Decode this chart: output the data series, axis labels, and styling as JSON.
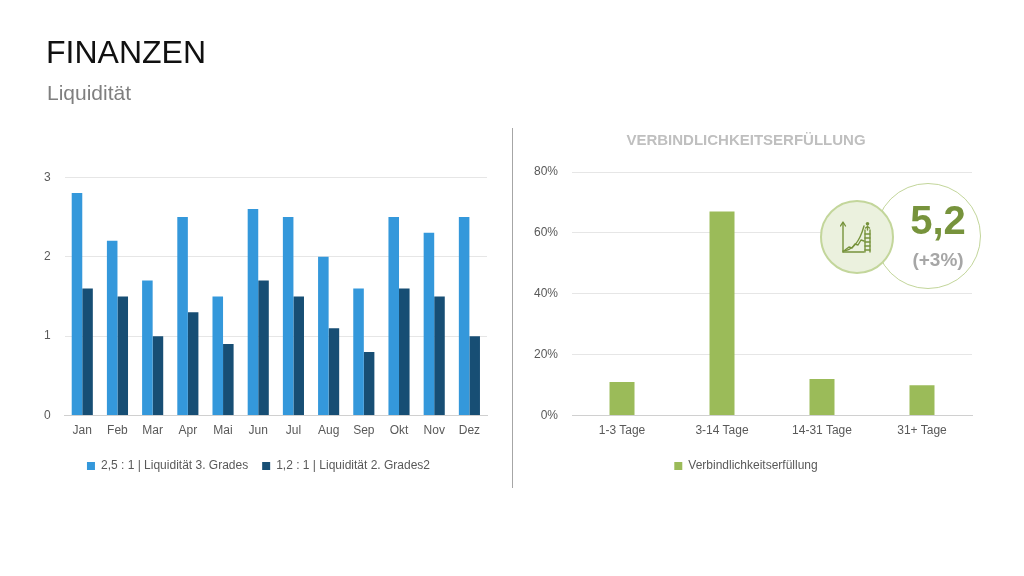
{
  "chart_data": [
    {
      "type": "bar",
      "title": "FINANZEN",
      "subtitle": "Liquidität",
      "categories": [
        "Jan",
        "Feb",
        "Mar",
        "Apr",
        "Mai",
        "Jun",
        "Jul",
        "Aug",
        "Sep",
        "Okt",
        "Nov",
        "Dez"
      ],
      "series": [
        {
          "name": "2,5 : 1 | Liquidität 3. Grades",
          "color": "#3498db",
          "values": [
            2.8,
            2.2,
            1.7,
            2.5,
            1.5,
            2.6,
            2.5,
            2.0,
            1.6,
            2.5,
            2.3,
            2.5
          ]
        },
        {
          "name": "1,2 : 1 | Liquidität 2. Grades2",
          "color": "#174e74",
          "values": [
            1.6,
            1.5,
            1.0,
            1.3,
            0.9,
            1.7,
            1.5,
            1.1,
            0.8,
            1.6,
            1.5,
            1.0
          ]
        }
      ],
      "ylim": [
        0,
        3
      ],
      "yticks": [
        0,
        1,
        2,
        3
      ],
      "grid": "y",
      "legend": "bottom"
    },
    {
      "type": "bar",
      "title": "VERBINDLICHKEITSERFÜLLUNG",
      "categories": [
        "1-3 Tage",
        "3-14 Tage",
        "14-31 Tage",
        "31+ Tage"
      ],
      "series": [
        {
          "name": "Verbindlichkeitserfüllung",
          "color": "#9bbb59",
          "values": [
            11,
            67,
            12,
            10
          ]
        }
      ],
      "ylim": [
        0,
        80
      ],
      "yticks": [
        {
          "value": 0,
          "label": "0%"
        },
        {
          "value": 20,
          "label": "20%"
        },
        {
          "value": 40,
          "label": "40%"
        },
        {
          "value": 60,
          "label": "60%"
        },
        {
          "value": 80,
          "label": "80%"
        }
      ],
      "grid": "y",
      "legend": "bottom",
      "annotations": [
        "5,2",
        "(+3%)"
      ]
    }
  ]
}
